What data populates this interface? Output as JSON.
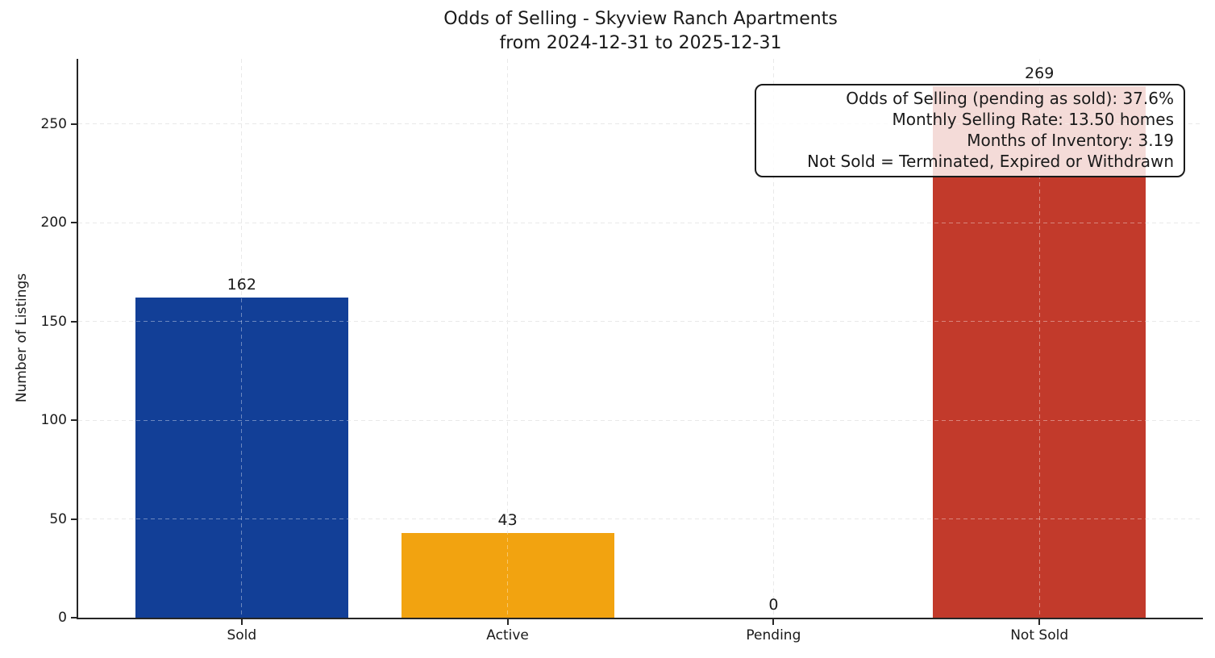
{
  "chart_data": {
    "type": "bar",
    "title": "Odds of Selling - Skyview Ranch Apartments",
    "subtitle": "from 2024-12-31 to 2025-12-31",
    "ylabel": "Number of Listings",
    "xlabel": "",
    "categories": [
      "Sold",
      "Active",
      "Pending",
      "Not Sold"
    ],
    "values": [
      162,
      43,
      0,
      269
    ],
    "value_labels": [
      "162",
      "43",
      "0",
      "269"
    ],
    "bar_colors": [
      "#123f97",
      "#f2a310",
      null,
      "#c23a2b"
    ],
    "yticks": [
      0,
      50,
      100,
      150,
      200,
      250
    ],
    "ylim": [
      0,
      283
    ],
    "grid": true,
    "legend_position": "none",
    "annotation": {
      "lines": [
        "Odds of Selling (pending as sold): 37.6%",
        "Monthly Selling Rate: 13.50 homes",
        "Months of Inventory: 3.19",
        "Not Sold = Terminated, Expired or Withdrawn"
      ]
    },
    "colors": {
      "axis": "#262626",
      "grid": "#dcdcdc",
      "text": "#1a1a1a",
      "background": "#ffffff"
    }
  }
}
